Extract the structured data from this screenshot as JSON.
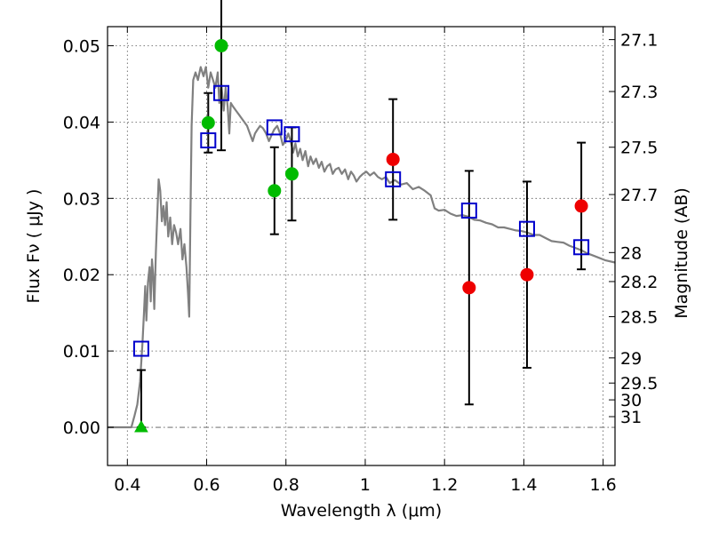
{
  "chart_data": {
    "type": "scatter",
    "xlabel": "Wavelength  λ (μm)",
    "ylabel": "Flux  Fν  ( μJy )",
    "ylabel_right": "Magnitude (AB)",
    "xlim": [
      0.35,
      1.63
    ],
    "ylim": [
      -0.005,
      0.0525
    ],
    "grid": true,
    "x_ticks": [
      0.4,
      0.6,
      0.8,
      1.0,
      1.2,
      1.4,
      1.6
    ],
    "x_tick_labels": [
      "0.4",
      "0.6",
      "0.8",
      "1",
      "1.2",
      "1.4",
      "1.6"
    ],
    "y_ticks": [
      0.0,
      0.01,
      0.02,
      0.03,
      0.04,
      0.05
    ],
    "y_tick_labels": [
      "0.00",
      "0.01",
      "0.02",
      "0.03",
      "0.04",
      "0.05"
    ],
    "right_ticks": [
      {
        "flux": 0.0508,
        "label": "27.1"
      },
      {
        "flux": 0.044,
        "label": "27.3"
      },
      {
        "flux": 0.0367,
        "label": "27.5"
      },
      {
        "flux": 0.0305,
        "label": "27.7"
      },
      {
        "flux": 0.0229,
        "label": "28"
      },
      {
        "flux": 0.0191,
        "label": "28.2"
      },
      {
        "flux": 0.0145,
        "label": "28.5"
      },
      {
        "flux": 0.0091,
        "label": "29"
      },
      {
        "flux": 0.0058,
        "label": "29.5"
      },
      {
        "flux": 0.0036,
        "label": "30"
      },
      {
        "flux": 0.0014,
        "label": "31"
      }
    ],
    "model_sed": {
      "color": "#808080",
      "points": [
        [
          0.35,
          0.0
        ],
        [
          0.41,
          0.0
        ],
        [
          0.418,
          0.0015
        ],
        [
          0.425,
          0.003
        ],
        [
          0.432,
          0.006
        ],
        [
          0.438,
          0.011
        ],
        [
          0.442,
          0.015
        ],
        [
          0.445,
          0.0185
        ],
        [
          0.448,
          0.014
        ],
        [
          0.452,
          0.019
        ],
        [
          0.456,
          0.021
        ],
        [
          0.459,
          0.0165
        ],
        [
          0.462,
          0.022
        ],
        [
          0.465,
          0.02
        ],
        [
          0.468,
          0.0155
        ],
        [
          0.472,
          0.023
        ],
        [
          0.476,
          0.0285
        ],
        [
          0.479,
          0.0325
        ],
        [
          0.483,
          0.031
        ],
        [
          0.487,
          0.027
        ],
        [
          0.491,
          0.029
        ],
        [
          0.495,
          0.0265
        ],
        [
          0.499,
          0.0295
        ],
        [
          0.503,
          0.025
        ],
        [
          0.508,
          0.0275
        ],
        [
          0.513,
          0.024
        ],
        [
          0.518,
          0.0265
        ],
        [
          0.523,
          0.0255
        ],
        [
          0.528,
          0.024
        ],
        [
          0.534,
          0.026
        ],
        [
          0.539,
          0.022
        ],
        [
          0.544,
          0.024
        ],
        [
          0.549,
          0.021
        ],
        [
          0.553,
          0.0175
        ],
        [
          0.556,
          0.0145
        ],
        [
          0.559,
          0.027
        ],
        [
          0.562,
          0.0395
        ],
        [
          0.566,
          0.0455
        ],
        [
          0.572,
          0.0465
        ],
        [
          0.578,
          0.0455
        ],
        [
          0.585,
          0.0472
        ],
        [
          0.592,
          0.046
        ],
        [
          0.598,
          0.0472
        ],
        [
          0.604,
          0.0445
        ],
        [
          0.61,
          0.0465
        ],
        [
          0.616,
          0.0455
        ],
        [
          0.622,
          0.0445
        ],
        [
          0.628,
          0.0465
        ],
        [
          0.632,
          0.0425
        ],
        [
          0.637,
          0.045
        ],
        [
          0.643,
          0.0415
        ],
        [
          0.648,
          0.0445
        ],
        [
          0.653,
          0.042
        ],
        [
          0.657,
          0.0385
        ],
        [
          0.661,
          0.0425
        ],
        [
          0.667,
          0.042
        ],
        [
          0.674,
          0.0415
        ],
        [
          0.681,
          0.041
        ],
        [
          0.688,
          0.0405
        ],
        [
          0.695,
          0.04
        ],
        [
          0.702,
          0.0395
        ],
        [
          0.709,
          0.0385
        ],
        [
          0.716,
          0.0375
        ],
        [
          0.722,
          0.0385
        ],
        [
          0.728,
          0.039
        ],
        [
          0.735,
          0.0395
        ],
        [
          0.742,
          0.0392
        ],
        [
          0.75,
          0.0385
        ],
        [
          0.757,
          0.0375
        ],
        [
          0.763,
          0.0382
        ],
        [
          0.77,
          0.039
        ],
        [
          0.778,
          0.0395
        ],
        [
          0.785,
          0.0385
        ],
        [
          0.792,
          0.037
        ],
        [
          0.799,
          0.0375
        ],
        [
          0.806,
          0.0385
        ],
        [
          0.812,
          0.0375
        ],
        [
          0.818,
          0.036
        ],
        [
          0.824,
          0.0372
        ],
        [
          0.83,
          0.0355
        ],
        [
          0.836,
          0.0365
        ],
        [
          0.842,
          0.035
        ],
        [
          0.849,
          0.0362
        ],
        [
          0.856,
          0.0342
        ],
        [
          0.862,
          0.0355
        ],
        [
          0.869,
          0.0345
        ],
        [
          0.876,
          0.0352
        ],
        [
          0.883,
          0.034
        ],
        [
          0.89,
          0.0348
        ],
        [
          0.897,
          0.0335
        ],
        [
          0.904,
          0.0342
        ],
        [
          0.911,
          0.0345
        ],
        [
          0.918,
          0.0332
        ],
        [
          0.925,
          0.0338
        ],
        [
          0.933,
          0.034
        ],
        [
          0.941,
          0.0332
        ],
        [
          0.949,
          0.0338
        ],
        [
          0.957,
          0.0325
        ],
        [
          0.964,
          0.0335
        ],
        [
          0.971,
          0.033
        ],
        [
          0.978,
          0.0322
        ],
        [
          0.986,
          0.0328
        ],
        [
          0.994,
          0.0332
        ],
        [
          1.003,
          0.0335
        ],
        [
          1.012,
          0.033
        ],
        [
          1.022,
          0.0334
        ],
        [
          1.032,
          0.0328
        ],
        [
          1.042,
          0.0325
        ],
        [
          1.052,
          0.0328
        ],
        [
          1.062,
          0.032
        ],
        [
          1.075,
          0.0324
        ],
        [
          1.09,
          0.0318
        ],
        [
          1.105,
          0.032
        ],
        [
          1.12,
          0.0312
        ],
        [
          1.135,
          0.0315
        ],
        [
          1.15,
          0.031
        ],
        [
          1.165,
          0.0304
        ],
        [
          1.175,
          0.0287
        ],
        [
          1.185,
          0.0284
        ],
        [
          1.2,
          0.0285
        ],
        [
          1.215,
          0.028
        ],
        [
          1.23,
          0.0277
        ],
        [
          1.245,
          0.0278
        ],
        [
          1.26,
          0.0276
        ],
        [
          1.275,
          0.0272
        ],
        [
          1.29,
          0.0271
        ],
        [
          1.305,
          0.0268
        ],
        [
          1.32,
          0.0266
        ],
        [
          1.335,
          0.0262
        ],
        [
          1.35,
          0.0262
        ],
        [
          1.365,
          0.026
        ],
        [
          1.38,
          0.0258
        ],
        [
          1.395,
          0.0257
        ],
        [
          1.41,
          0.0255
        ],
        [
          1.425,
          0.0252
        ],
        [
          1.44,
          0.0252
        ],
        [
          1.455,
          0.0248
        ],
        [
          1.47,
          0.0244
        ],
        [
          1.485,
          0.0243
        ],
        [
          1.5,
          0.0242
        ],
        [
          1.515,
          0.0238
        ],
        [
          1.53,
          0.0235
        ],
        [
          1.545,
          0.0232
        ],
        [
          1.56,
          0.0228
        ],
        [
          1.575,
          0.0225
        ],
        [
          1.59,
          0.0222
        ],
        [
          1.605,
          0.0219
        ],
        [
          1.63,
          0.0216
        ]
      ]
    },
    "model_photometry": {
      "color": "#0000cc",
      "points": [
        {
          "x": 0.435,
          "y": 0.0103
        },
        {
          "x": 0.604,
          "y": 0.0376
        },
        {
          "x": 0.637,
          "y": 0.0438
        },
        {
          "x": 0.771,
          "y": 0.0393
        },
        {
          "x": 0.815,
          "y": 0.0384
        },
        {
          "x": 1.07,
          "y": 0.0325
        },
        {
          "x": 1.262,
          "y": 0.0284
        },
        {
          "x": 1.408,
          "y": 0.026
        },
        {
          "x": 1.545,
          "y": 0.0236
        }
      ]
    },
    "observed": [
      {
        "x": 0.435,
        "y": 0.0,
        "err_lo": 0.0,
        "err_hi": 0.0075,
        "color": "#00bb00",
        "marker": "triangle"
      },
      {
        "x": 0.604,
        "y": 0.0399,
        "err_lo": 0.0039,
        "err_hi": 0.0039,
        "color": "#00bb00",
        "marker": "circle"
      },
      {
        "x": 0.637,
        "y": 0.05,
        "err_lo": 0.0137,
        "err_hi": 0.0137,
        "color": "#00bb00",
        "marker": "circle"
      },
      {
        "x": 0.771,
        "y": 0.031,
        "err_lo": 0.0057,
        "err_hi": 0.0057,
        "color": "#00bb00",
        "marker": "circle"
      },
      {
        "x": 0.815,
        "y": 0.0332,
        "err_lo": 0.0061,
        "err_hi": 0.0061,
        "color": "#00bb00",
        "marker": "circle"
      },
      {
        "x": 1.07,
        "y": 0.0351,
        "err_lo": 0.0079,
        "err_hi": 0.0079,
        "color": "#ee0000",
        "marker": "circle"
      },
      {
        "x": 1.262,
        "y": 0.0183,
        "err_lo": 0.0153,
        "err_hi": 0.0153,
        "color": "#ee0000",
        "marker": "circle"
      },
      {
        "x": 1.408,
        "y": 0.02,
        "err_lo": 0.0122,
        "err_hi": 0.0122,
        "color": "#ee0000",
        "marker": "circle"
      },
      {
        "x": 1.545,
        "y": 0.029,
        "err_lo": 0.0083,
        "err_hi": 0.0083,
        "color": "#ee0000",
        "marker": "circle"
      }
    ]
  }
}
